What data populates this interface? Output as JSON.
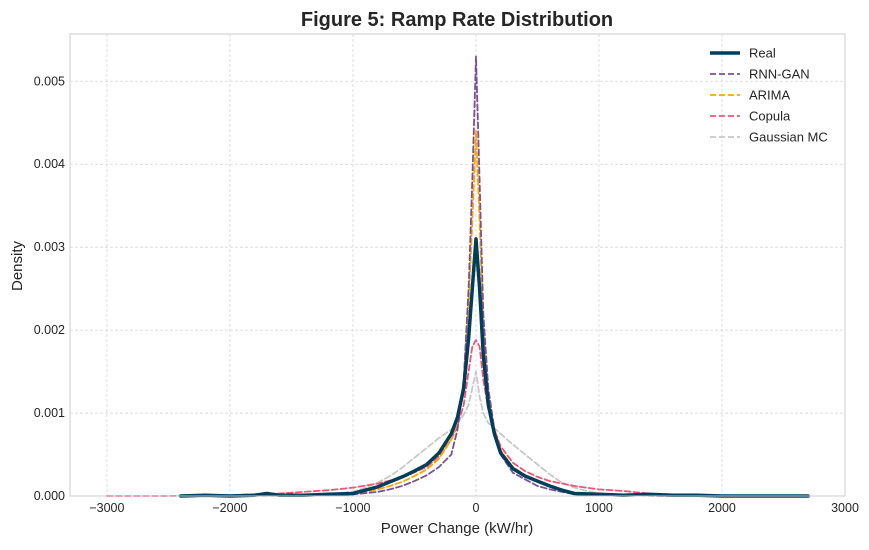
{
  "chart_data": {
    "type": "line",
    "title": "Figure 5: Ramp Rate Distribution",
    "xlabel": "Power Change (kW/hr)",
    "ylabel": "Density",
    "xlim": [
      -3300,
      3000
    ],
    "ylim": [
      0,
      0.00557
    ],
    "x_ticks": [
      -3000,
      -2000,
      -1000,
      0,
      1000,
      2000,
      3000
    ],
    "x_tick_labels": [
      "−3000",
      "−2000",
      "−1000",
      "0",
      "1000",
      "2000",
      "3000"
    ],
    "y_ticks": [
      0,
      0.001,
      0.002,
      0.003,
      0.004,
      0.005
    ],
    "y_tick_labels": [
      "0.000",
      "0.001",
      "0.002",
      "0.003",
      "0.004",
      "0.005"
    ],
    "grid": true,
    "legend_position": "top-right",
    "series": [
      {
        "name": "Real",
        "color": "#003f5c",
        "style": "solid",
        "x": [
          -2400,
          -2200,
          -2000,
          -1800,
          -1700,
          -1600,
          -1400,
          -1200,
          -1000,
          -900,
          -800,
          -700,
          -600,
          -500,
          -400,
          -300,
          -200,
          -150,
          -100,
          -60,
          -30,
          0,
          30,
          60,
          100,
          150,
          200,
          300,
          400,
          500,
          600,
          700,
          800,
          1000,
          1200,
          1400,
          1600,
          1800,
          2000,
          2400,
          2700
        ],
        "y": [
          0.0,
          1e-05,
          0.0,
          1e-05,
          3e-05,
          1e-05,
          1e-05,
          2e-05,
          3e-05,
          7e-05,
          0.00011,
          0.00017,
          0.00023,
          0.0003,
          0.00038,
          0.00052,
          0.00075,
          0.00095,
          0.0013,
          0.0019,
          0.0025,
          0.0031,
          0.0025,
          0.0017,
          0.0011,
          0.00075,
          0.00052,
          0.00033,
          0.00024,
          0.00018,
          0.00012,
          7e-05,
          3e-05,
          2e-05,
          1e-05,
          2e-05,
          1e-05,
          1e-05,
          0.0,
          0.0,
          0.0
        ]
      },
      {
        "name": "RNN-GAN",
        "color": "#7a5195",
        "style": "dashed",
        "x": [
          -2400,
          -2000,
          -1600,
          -1200,
          -1000,
          -800,
          -700,
          -600,
          -500,
          -400,
          -300,
          -200,
          -150,
          -100,
          -60,
          -30,
          0,
          30,
          60,
          100,
          150,
          200,
          300,
          400,
          500,
          600,
          700,
          800,
          1000,
          1200,
          1500,
          2000,
          2400,
          2700
        ],
        "y": [
          0.0,
          0.0,
          1e-05,
          2e-05,
          2e-05,
          5e-05,
          8e-05,
          0.00012,
          0.00018,
          0.00025,
          0.00035,
          0.0005,
          0.0008,
          0.0014,
          0.0025,
          0.0038,
          0.0053,
          0.0038,
          0.0022,
          0.0013,
          0.0008,
          0.0005,
          0.00028,
          0.0002,
          0.00012,
          8e-05,
          5e-05,
          2e-05,
          1e-05,
          1e-05,
          0.0,
          0.0,
          0.0,
          0.0
        ]
      },
      {
        "name": "ARIMA",
        "color": "#ffa600",
        "style": "dashed",
        "x": [
          -2400,
          -2000,
          -1600,
          -1200,
          -1000,
          -800,
          -700,
          -600,
          -500,
          -400,
          -300,
          -200,
          -150,
          -100,
          -60,
          -30,
          0,
          30,
          60,
          100,
          150,
          200,
          300,
          400,
          500,
          600,
          700,
          800,
          1000,
          1200,
          1600,
          2000,
          2400,
          2700
        ],
        "y": [
          0.0,
          0.0,
          1e-05,
          2e-05,
          3e-05,
          8e-05,
          0.00012,
          0.00017,
          0.00024,
          0.00032,
          0.00045,
          0.00068,
          0.0009,
          0.0014,
          0.0023,
          0.0033,
          0.0044,
          0.0033,
          0.002,
          0.0012,
          0.0008,
          0.00055,
          0.00035,
          0.00025,
          0.00017,
          0.00012,
          7e-05,
          4e-05,
          2e-05,
          1e-05,
          1e-05,
          0.0,
          0.0,
          0.0
        ]
      },
      {
        "name": "Copula",
        "color": "#ef5675",
        "style": "dashed",
        "x": [
          -3000,
          -2500,
          -2000,
          -1600,
          -1200,
          -1000,
          -800,
          -600,
          -400,
          -300,
          -200,
          -150,
          -100,
          -60,
          -30,
          0,
          30,
          60,
          100,
          150,
          200,
          300,
          400,
          500,
          600,
          800,
          1000,
          1200,
          1400,
          1600,
          2000,
          2400,
          2700
        ],
        "y": [
          0.0,
          0.0,
          1e-05,
          3e-05,
          7e-05,
          0.0001,
          0.00015,
          0.00022,
          0.00035,
          0.00048,
          0.00068,
          0.00085,
          0.0011,
          0.0015,
          0.0018,
          0.00188,
          0.0018,
          0.0014,
          0.00105,
          0.0008,
          0.0006,
          0.0004,
          0.0003,
          0.00023,
          0.00018,
          0.00012,
          8e-05,
          6e-05,
          3e-05,
          1e-05,
          0.0,
          0.0,
          0.0
        ]
      },
      {
        "name": "Gaussian MC",
        "color": "#c8c8c8",
        "style": "dashed",
        "x": [
          -2400,
          -2000,
          -1600,
          -1200,
          -1000,
          -900,
          -800,
          -700,
          -600,
          -500,
          -400,
          -300,
          -200,
          -150,
          -100,
          -60,
          -30,
          0,
          30,
          60,
          100,
          150,
          200,
          300,
          400,
          500,
          600,
          700,
          800,
          900,
          1000,
          1200,
          1600,
          2000,
          2400,
          2700
        ],
        "y": [
          0.0,
          0.0,
          0.0,
          2e-05,
          5e-05,
          0.0001,
          0.00016,
          0.00024,
          0.00034,
          0.00046,
          0.00058,
          0.0007,
          0.0008,
          0.00088,
          0.00098,
          0.0011,
          0.0013,
          0.0015,
          0.0012,
          0.001,
          0.00088,
          0.00082,
          0.00075,
          0.00062,
          0.0005,
          0.00038,
          0.00026,
          0.00016,
          0.0001,
          6e-05,
          3e-05,
          1e-05,
          0.0,
          0.0,
          0.0,
          0.0
        ]
      }
    ]
  }
}
